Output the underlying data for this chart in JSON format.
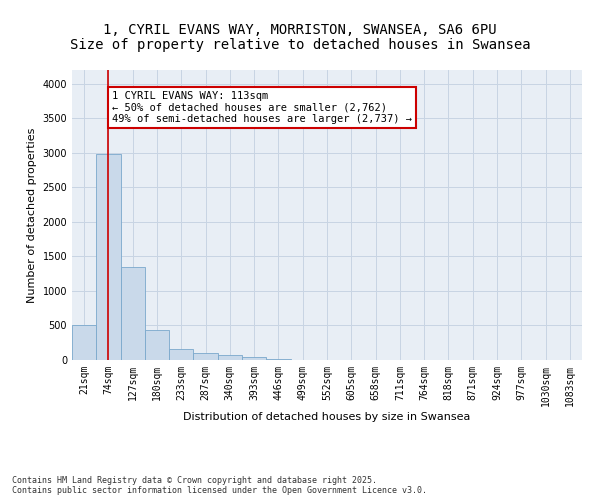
{
  "title_line1": "1, CYRIL EVANS WAY, MORRISTON, SWANSEA, SA6 6PU",
  "title_line2": "Size of property relative to detached houses in Swansea",
  "xlabel": "Distribution of detached houses by size in Swansea",
  "ylabel": "Number of detached properties",
  "categories": [
    "21sqm",
    "74sqm",
    "127sqm",
    "180sqm",
    "233sqm",
    "287sqm",
    "340sqm",
    "393sqm",
    "446sqm",
    "499sqm",
    "552sqm",
    "605sqm",
    "658sqm",
    "711sqm",
    "764sqm",
    "818sqm",
    "871sqm",
    "924sqm",
    "977sqm",
    "1030sqm",
    "1083sqm"
  ],
  "values": [
    500,
    2980,
    1350,
    430,
    160,
    100,
    70,
    50,
    10,
    5,
    0,
    0,
    0,
    0,
    0,
    0,
    0,
    0,
    0,
    0,
    0
  ],
  "bar_color": "#c9d9ea",
  "bar_edge_color": "#7aa8cc",
  "red_line_x": 1,
  "annotation_text": "1 CYRIL EVANS WAY: 113sqm\n← 50% of detached houses are smaller (2,762)\n49% of semi-detached houses are larger (2,737) →",
  "annotation_box_color": "#ffffff",
  "annotation_box_edge": "#cc0000",
  "red_line_color": "#cc0000",
  "grid_color": "#c8d4e3",
  "background_color": "#e8eef5",
  "ylim": [
    0,
    4200
  ],
  "yticks": [
    0,
    500,
    1000,
    1500,
    2000,
    2500,
    3000,
    3500,
    4000
  ],
  "footer": "Contains HM Land Registry data © Crown copyright and database right 2025.\nContains public sector information licensed under the Open Government Licence v3.0.",
  "title_fontsize": 10,
  "axis_label_fontsize": 8,
  "tick_fontsize": 7,
  "annotation_fontsize": 7.5
}
